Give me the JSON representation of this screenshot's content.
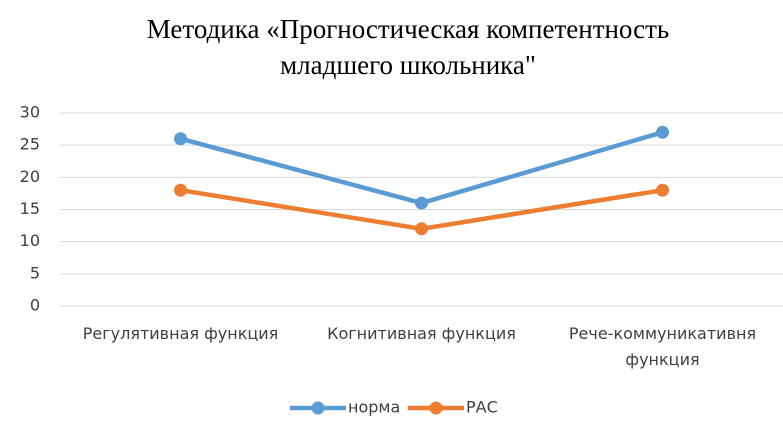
{
  "chart_data": {
    "type": "line",
    "title": [
      "Методика «Прогностическая компетентность",
      "младшего школьника\""
    ],
    "categories": [
      "Регулятивная функция",
      "Когнитивная функция",
      "Рече-коммуникативня функция"
    ],
    "series": [
      {
        "name": "норма",
        "color": "#5b9bd5",
        "values": [
          26,
          16,
          27
        ]
      },
      {
        "name": "РАС",
        "color": "#ed7d31",
        "values": [
          18,
          12,
          18
        ]
      }
    ],
    "ylim": [
      0,
      30
    ],
    "yticks": [
      0,
      5,
      10,
      15,
      20,
      25,
      30
    ],
    "grid": true,
    "legend": "bottom"
  }
}
